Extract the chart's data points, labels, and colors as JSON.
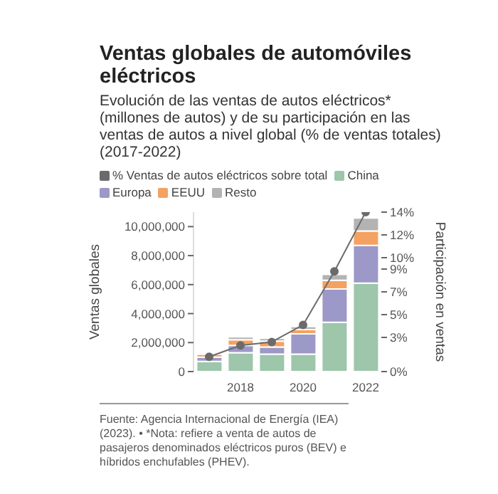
{
  "chart_data": {
    "type": "bar",
    "title": "Ventas globales de automóviles eléctricos",
    "subtitle": "Evolución de las ventas de autos eléctricos* (millones de autos) y de su participación en las ventas de autos a nivel global (% de ventas totales) (2017-2022)",
    "ylabel": "Ventas globales",
    "y2label": "Participación en ventas",
    "stacked": true,
    "legend": "top left",
    "marker": "circle",
    "categories": [
      null,
      "2018",
      null,
      "2020",
      null,
      "2022"
    ],
    "series": [
      {
        "name": "% Ventas de autos eléctricos sobre total",
        "type": "line",
        "axis": "y2",
        "color": "#6b6b6b",
        "values": [
          1.3,
          2.3,
          2.6,
          4.1,
          8.8,
          14
        ]
      },
      {
        "name": "China",
        "color": "#9dc6aa",
        "values": [
          700000,
          1300000,
          1200000,
          1200000,
          3400000,
          6100000
        ]
      },
      {
        "name": "Europa",
        "color": "#9c98c7",
        "values": [
          300000,
          500000,
          500000,
          1400000,
          2300000,
          2600000
        ]
      },
      {
        "name": "EEUU",
        "color": "#f4a261",
        "values": [
          200000,
          400000,
          400000,
          300000,
          600000,
          1000000
        ]
      },
      {
        "name": "Resto",
        "color": "#b3b3b3",
        "values": [
          100000,
          200000,
          200000,
          200000,
          400000,
          900000
        ]
      }
    ],
    "ylim": [
      0,
      11000000
    ],
    "yticks": [
      0,
      {
        "value": 2000000,
        "label": "2,000,000"
      },
      {
        "value": 4000000,
        "label": "4,000,000"
      },
      {
        "value": 6000000,
        "label": "6,000,000"
      },
      {
        "value": 8000000,
        "label": "8,000,000"
      },
      {
        "value": 10000000,
        "label": "10,000,000"
      }
    ],
    "y2lim": [
      0,
      14
    ],
    "y2ticks": [
      {
        "value": 0,
        "label": "0%"
      },
      {
        "value": 3,
        "label": "3%"
      },
      {
        "value": 5,
        "label": "5%"
      },
      {
        "value": 7,
        "label": "7%"
      },
      {
        "value": 9,
        "label": "9%"
      },
      {
        "value": 10,
        "label": "10%"
      },
      {
        "value": 12,
        "label": "12%"
      },
      {
        "value": 14,
        "label": "14%"
      }
    ],
    "annotations": [
      "Fuente: Agencia Internacional de Energía (IEA) (2023). • *Nota: refiere a venta de autos de pasajeros denominados eléctricos puros (BEV) e híbridos enchufables (PHEV)."
    ]
  }
}
